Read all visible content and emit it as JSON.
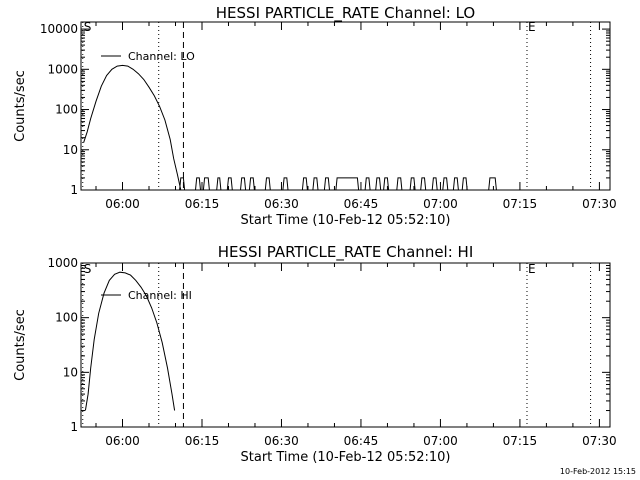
{
  "footer_timestamp": "10-Feb-2012 15:15",
  "chart_data": [
    {
      "type": "line",
      "title": "HESSI PARTICLE_RATE Channel: LO",
      "xlabel": "Start Time (10-Feb-12 05:52:10)",
      "ylabel": "Counts/sec",
      "yscale": "log",
      "xlim": [
        "05:52:10",
        "07:32:00"
      ],
      "ylim": [
        1,
        15000
      ],
      "x_ticks": [
        "06:00",
        "06:15",
        "06:30",
        "06:45",
        "07:00",
        "07:15",
        "07:30"
      ],
      "y_ticks": [
        {
          "value": 1,
          "label": "1"
        },
        {
          "value": 10,
          "label": "10"
        },
        {
          "value": 100,
          "label": "100"
        },
        {
          "value": 1000,
          "label": "1000"
        },
        {
          "value": 10000,
          "label": "10000"
        }
      ],
      "legend": {
        "entries": [
          "Channel: LO"
        ],
        "position": "top-left"
      },
      "markers": [
        {
          "label": "S",
          "time": "05:52:30"
        },
        {
          "label": "E",
          "time": "07:16:20"
        }
      ],
      "vlines": [
        {
          "time": "05:52:30",
          "style": "dotted"
        },
        {
          "time": "06:06:50",
          "style": "dotted"
        },
        {
          "time": "06:11:30",
          "style": "dashed"
        },
        {
          "time": "07:16:20",
          "style": "dotted"
        },
        {
          "time": "07:28:20",
          "style": "dotted"
        }
      ],
      "series": [
        {
          "name": "Channel: LO",
          "points": [
            [
              "05:52:40",
              15
            ],
            [
              "05:53:20",
              28
            ],
            [
              "05:54:00",
              60
            ],
            [
              "05:55:00",
              160
            ],
            [
              "05:56:00",
              380
            ],
            [
              "05:57:00",
              700
            ],
            [
              "05:58:00",
              1000
            ],
            [
              "05:59:00",
              1200
            ],
            [
              "06:00:00",
              1250
            ],
            [
              "06:01:00",
              1200
            ],
            [
              "06:02:00",
              1000
            ],
            [
              "06:03:00",
              780
            ],
            [
              "06:04:00",
              560
            ],
            [
              "06:05:00",
              360
            ],
            [
              "06:06:00",
              220
            ],
            [
              "06:07:00",
              120
            ],
            [
              "06:08:00",
              55
            ],
            [
              "06:09:00",
              18
            ],
            [
              "06:09:40",
              6
            ],
            [
              "06:10:20",
              2.5
            ],
            [
              "06:11:00",
              1
            ]
          ],
          "sporadic_one_count_intervals": [
            [
              "06:11:00",
              "06:11:30"
            ],
            [
              "06:14:00",
              "06:14:30"
            ],
            [
              "06:15:30",
              "06:16:10"
            ],
            [
              "06:18:00",
              "06:18:20"
            ],
            [
              "06:20:00",
              "06:20:30"
            ],
            [
              "06:22:30",
              "06:23:00"
            ],
            [
              "06:24:10",
              "06:24:40"
            ],
            [
              "06:27:10",
              "06:27:40"
            ],
            [
              "06:30:30",
              "06:31:00"
            ],
            [
              "06:34:10",
              "06:34:40"
            ],
            [
              "06:36:10",
              "06:36:40"
            ],
            [
              "06:38:20",
              "06:38:50"
            ],
            [
              "06:40:30",
              "06:44:20"
            ],
            [
              "06:46:00",
              "06:46:30"
            ],
            [
              "06:48:00",
              "06:48:30"
            ],
            [
              "06:49:30",
              "06:50:00"
            ],
            [
              "06:52:00",
              "06:52:30"
            ],
            [
              "06:54:30",
              "06:55:00"
            ],
            [
              "06:56:30",
              "06:57:00"
            ],
            [
              "06:58:40",
              "06:59:10"
            ],
            [
              "07:00:40",
              "07:01:10"
            ],
            [
              "07:02:40",
              "07:03:10"
            ],
            [
              "07:04:20",
              "07:04:50"
            ],
            [
              "07:09:20",
              "07:10:20"
            ]
          ]
        }
      ]
    },
    {
      "type": "line",
      "title": "HESSI PARTICLE_RATE Channel: HI",
      "xlabel": "Start Time (10-Feb-12 05:52:10)",
      "ylabel": "Counts/sec",
      "yscale": "log",
      "xlim": [
        "05:52:10",
        "07:32:00"
      ],
      "ylim": [
        1,
        1000
      ],
      "x_ticks": [
        "06:00",
        "06:15",
        "06:30",
        "06:45",
        "07:00",
        "07:15",
        "07:30"
      ],
      "y_ticks": [
        {
          "value": 1,
          "label": "1"
        },
        {
          "value": 10,
          "label": "10"
        },
        {
          "value": 100,
          "label": "100"
        },
        {
          "value": 1000,
          "label": "1000"
        }
      ],
      "legend": {
        "entries": [
          "Channel: HI"
        ],
        "position": "top-left"
      },
      "markers": [
        {
          "label": "S",
          "time": "05:52:30"
        },
        {
          "label": "E",
          "time": "07:16:20"
        }
      ],
      "vlines": [
        {
          "time": "05:52:30",
          "style": "dotted"
        },
        {
          "time": "06:06:50",
          "style": "dotted"
        },
        {
          "time": "06:11:30",
          "style": "dashed"
        },
        {
          "time": "07:16:20",
          "style": "dotted"
        },
        {
          "time": "07:28:20",
          "style": "dotted"
        }
      ],
      "series": [
        {
          "name": "Channel: HI",
          "points": [
            [
              "05:53:00",
              2
            ],
            [
              "05:53:30",
              4
            ],
            [
              "05:54:00",
              12
            ],
            [
              "05:54:40",
              40
            ],
            [
              "05:55:30",
              120
            ],
            [
              "05:56:30",
              280
            ],
            [
              "05:57:30",
              480
            ],
            [
              "05:58:30",
              620
            ],
            [
              "05:59:30",
              680
            ],
            [
              "06:00:30",
              660
            ],
            [
              "06:01:30",
              600
            ],
            [
              "06:02:30",
              480
            ],
            [
              "06:03:30",
              360
            ],
            [
              "06:04:30",
              250
            ],
            [
              "06:05:30",
              150
            ],
            [
              "06:06:30",
              80
            ],
            [
              "06:07:30",
              35
            ],
            [
              "06:08:30",
              12
            ],
            [
              "06:09:20",
              4
            ],
            [
              "06:09:50",
              2
            ]
          ]
        }
      ]
    }
  ]
}
